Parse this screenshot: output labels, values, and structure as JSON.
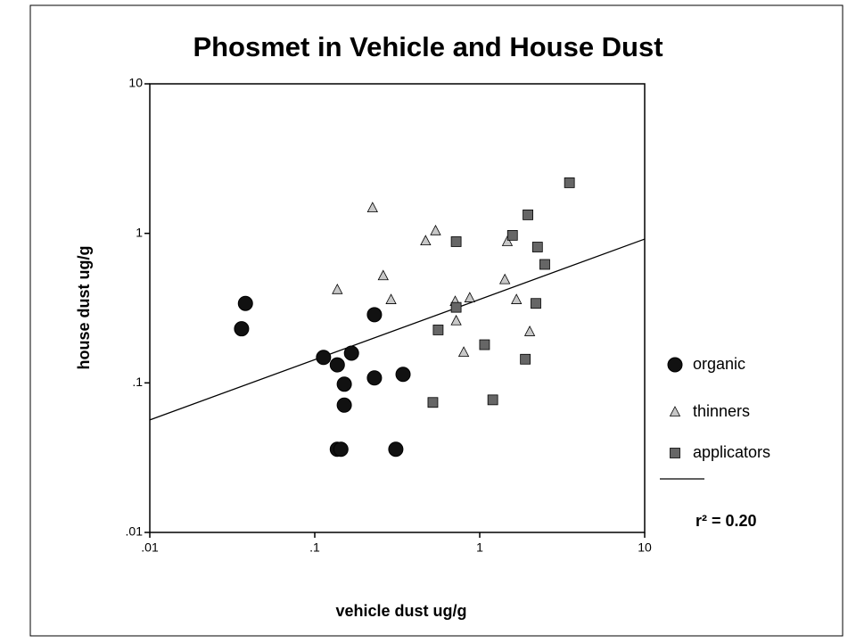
{
  "chart_data": {
    "type": "scatter",
    "title": "Phosmet in Vehicle and House Dust",
    "x_label": "vehicle dust ug/g",
    "y_label": "house dust ug/g",
    "log_x": true,
    "log_y": true,
    "xlim": [
      0.01,
      10
    ],
    "ylim": [
      0.01,
      10
    ],
    "xticks": [
      {
        "value": 0.01,
        "label": ".01"
      },
      {
        "value": 0.1,
        "label": ".1"
      },
      1,
      10
    ],
    "yticks": [
      {
        "value": 0.01,
        "label": ".01"
      },
      {
        "value": 0.1,
        "label": ".1"
      },
      1,
      10
    ],
    "legend": "right",
    "series": [
      {
        "name": "organic",
        "color": "#111111",
        "marker": "circle",
        "x": [
          0.036,
          0.038,
          0.113,
          0.137,
          0.167,
          0.151,
          0.151,
          0.137,
          0.144,
          0.23,
          0.23,
          0.343,
          0.31
        ],
        "values": [
          0.23,
          0.34,
          0.148,
          0.132,
          0.158,
          0.098,
          0.071,
          0.036,
          0.036,
          0.286,
          0.108,
          0.114,
          0.036
        ]
      },
      {
        "name": "thinners",
        "color": "#c8c8c8",
        "marker": "triangle",
        "x": [
          0.137,
          0.224,
          0.26,
          0.29,
          0.47,
          0.54,
          0.71,
          0.72,
          0.87,
          0.8,
          1.42,
          1.47,
          1.67,
          2.01
        ],
        "values": [
          0.42,
          1.48,
          0.52,
          0.36,
          0.89,
          1.04,
          0.35,
          0.26,
          0.37,
          0.16,
          0.49,
          0.88,
          0.36,
          0.22
        ]
      },
      {
        "name": "applicators",
        "color": "#666666",
        "marker": "square",
        "x": [
          3.5,
          1.96,
          1.58,
          2.24,
          2.48,
          0.72,
          0.72,
          0.56,
          1.07,
          0.52,
          1.2,
          1.89,
          2.19
        ],
        "values": [
          2.18,
          1.33,
          0.97,
          0.81,
          0.62,
          0.88,
          0.32,
          0.226,
          0.18,
          0.074,
          0.077,
          0.144,
          0.34
        ]
      }
    ],
    "regression_line": {
      "x": [
        0.01,
        10
      ],
      "values": [
        0.0565,
        0.916
      ]
    },
    "annotation": "r² = 0.20"
  }
}
